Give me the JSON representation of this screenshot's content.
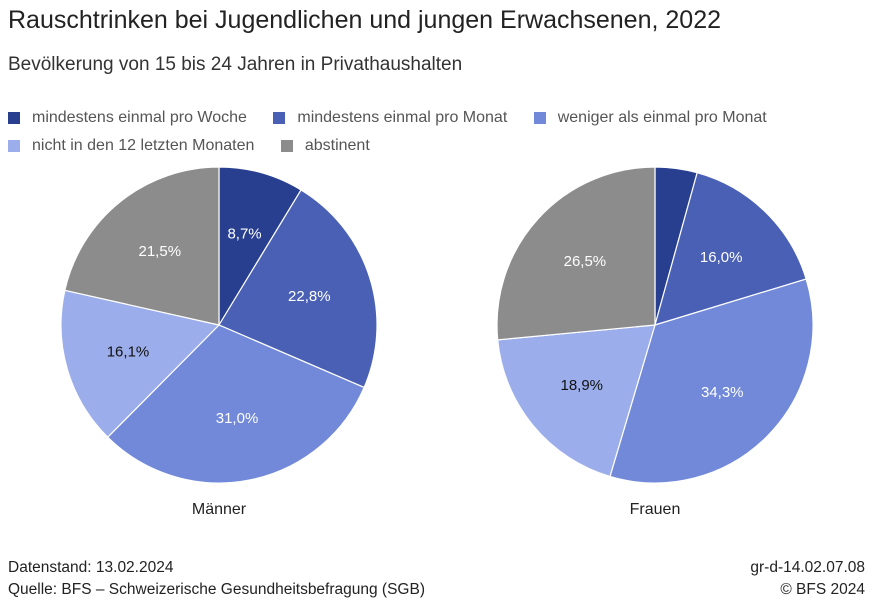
{
  "title": "Rauschtrinken bei Jugendlichen und jungen Erwachsenen, 2022",
  "subtitle": "Bevölkerung von 15 bis 24 Jahren in Privathaushalten",
  "footer": {
    "datenstand": "Datenstand: 13.02.2024",
    "quelle": "Quelle: BFS – Schweizerische Gesundheitsbefragung (SGB)",
    "code": "gr-d-14.02.07.08",
    "copyright": "© BFS 2024"
  },
  "chart_data": [
    {
      "type": "pie",
      "label": "Männer",
      "categories": [
        "mindestens einmal pro Woche",
        "mindestens einmal pro Monat",
        "weniger als einmal pro Monat",
        "nicht in den 12 letzten Monaten",
        "abstinent"
      ],
      "values": [
        8.7,
        22.8,
        31.0,
        16.1,
        21.5
      ],
      "data_labels": [
        "8,7%",
        "22,8%",
        "31,0%",
        "16,1%",
        "21,5%"
      ],
      "colors": [
        "#283f8f",
        "#4a60b5",
        "#7189d8",
        "#9badea",
        "#8c8c8c"
      ],
      "legend": "top"
    },
    {
      "type": "pie",
      "label": "Frauen",
      "categories": [
        "mindestens einmal pro Woche",
        "mindestens einmal pro Monat",
        "weniger als einmal pro Monat",
        "nicht in den 12 letzten Monaten",
        "abstinent"
      ],
      "values": [
        4.3,
        16.0,
        34.3,
        18.9,
        26.5
      ],
      "data_labels": [
        "",
        "16,0%",
        "34,3%",
        "18,9%",
        "26,5%"
      ],
      "colors": [
        "#283f8f",
        "#4a60b5",
        "#7189d8",
        "#9badea",
        "#8c8c8c"
      ],
      "legend": "top"
    }
  ],
  "legend": [
    {
      "label": "mindestens einmal pro Woche",
      "color": "#283f8f"
    },
    {
      "label": "mindestens einmal pro Monat",
      "color": "#4a60b5"
    },
    {
      "label": "weniger als einmal pro Monat",
      "color": "#7189d8"
    },
    {
      "label": "nicht in den 12 letzten Monaten",
      "color": "#9badea"
    },
    {
      "label": "abstinent",
      "color": "#8c8c8c"
    }
  ]
}
